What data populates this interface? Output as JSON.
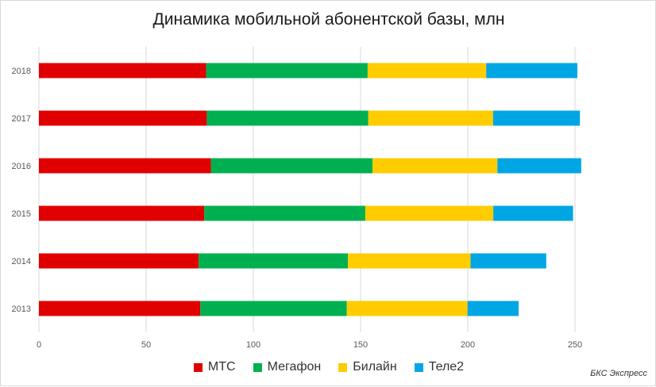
{
  "chart_data": {
    "type": "bar",
    "orientation": "horizontal",
    "stacked": true,
    "title": "Динамика мобильной абонентской базы, млн",
    "categories": [
      "2018",
      "2017",
      "2016",
      "2015",
      "2014",
      "2013"
    ],
    "series": [
      {
        "name": "МТС",
        "color": "#e00000",
        "values": [
          78.0,
          78.3,
          80.2,
          77.1,
          74.5,
          75.3
        ]
      },
      {
        "name": "Мегафон",
        "color": "#00b050",
        "values": [
          75.3,
          75.3,
          75.4,
          75.1,
          69.6,
          68.3
        ]
      },
      {
        "name": "Билайн",
        "color": "#ffcc00",
        "values": [
          55.3,
          58.2,
          58.2,
          59.7,
          57.2,
          56.3
        ]
      },
      {
        "name": "Теле2",
        "color": "#00a6e3",
        "values": [
          42.5,
          40.5,
          39.1,
          37.2,
          35.3,
          23.8
        ]
      }
    ],
    "xlim": [
      0,
      250
    ],
    "xticks": [
      0,
      50,
      100,
      150,
      200,
      250
    ],
    "grid": "vertical",
    "legend": "bottom"
  },
  "source_note": "БКС Экспресс"
}
